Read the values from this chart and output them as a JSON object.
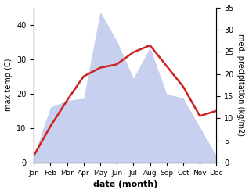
{
  "months": [
    "Jan",
    "Feb",
    "Mar",
    "Apr",
    "May",
    "Jun",
    "Jul",
    "Aug",
    "Sep",
    "Oct",
    "Nov",
    "Dec"
  ],
  "month_indices": [
    1,
    2,
    3,
    4,
    5,
    6,
    7,
    8,
    9,
    10,
    11,
    12
  ],
  "temperature": [
    2.0,
    10.5,
    18.0,
    25.0,
    27.5,
    28.5,
    32.0,
    34.0,
    28.0,
    22.0,
    13.5,
    15.0
  ],
  "precipitation": [
    1.5,
    12.5,
    14.0,
    14.5,
    34.0,
    27.5,
    19.0,
    26.0,
    15.5,
    14.5,
    8.0,
    1.5
  ],
  "temp_color": "#cc2222",
  "precip_fill_color": "#c8d0f0",
  "temp_ylim": [
    0,
    45
  ],
  "precip_ylim": [
    0,
    35
  ],
  "temp_yticks": [
    0,
    10,
    20,
    30,
    40
  ],
  "precip_yticks": [
    0,
    5,
    10,
    15,
    20,
    25,
    30,
    35
  ],
  "ylabel_left": "max temp (C)",
  "ylabel_right": "med. precipitation (kg/m2)",
  "xlabel": "date (month)",
  "figsize": [
    3.18,
    2.47
  ],
  "dpi": 100
}
